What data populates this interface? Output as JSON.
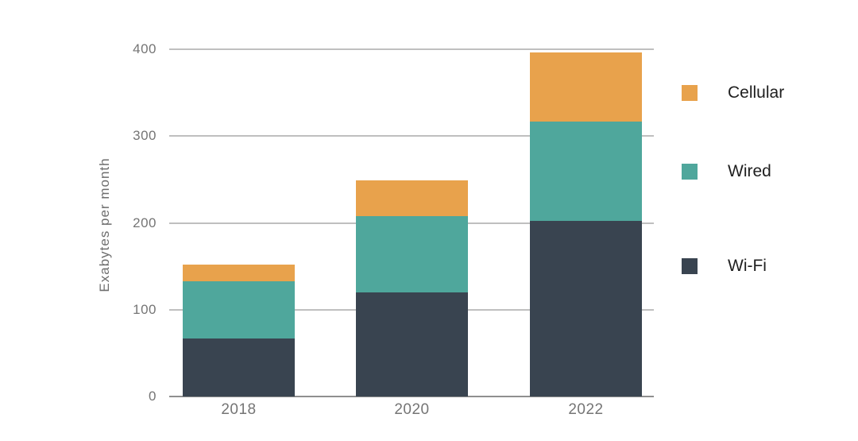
{
  "figure": {
    "background": "#ffffff"
  },
  "chart_data": {
    "type": "bar",
    "stacked": true,
    "title": "",
    "xlabel": "",
    "ylabel": "Exabytes per month",
    "categories": [
      "2018",
      "2020",
      "2022"
    ],
    "series": [
      {
        "name": "Wi-Fi",
        "color": "#394450",
        "values": [
          67,
          120,
          202
        ]
      },
      {
        "name": "Wired",
        "color": "#4FA79C",
        "values": [
          66,
          88,
          115
        ]
      },
      {
        "name": "Cellular",
        "color": "#E8A24C",
        "values": [
          19,
          41,
          79
        ]
      }
    ],
    "totals": [
      152,
      249,
      396
    ],
    "yticks": [
      0,
      100,
      200,
      300,
      400
    ],
    "ylim": [
      0,
      400
    ],
    "grid": true,
    "legend": {
      "position": "right",
      "order": [
        "Cellular",
        "Wired",
        "Wi-Fi"
      ]
    },
    "colors": {
      "gridline": "#bfbfbf",
      "axis_line": "#8f8f8f",
      "tick_text": "#757575",
      "axis_title_text": "#6e6e6e",
      "legend_text": "#1f1f1f"
    }
  }
}
